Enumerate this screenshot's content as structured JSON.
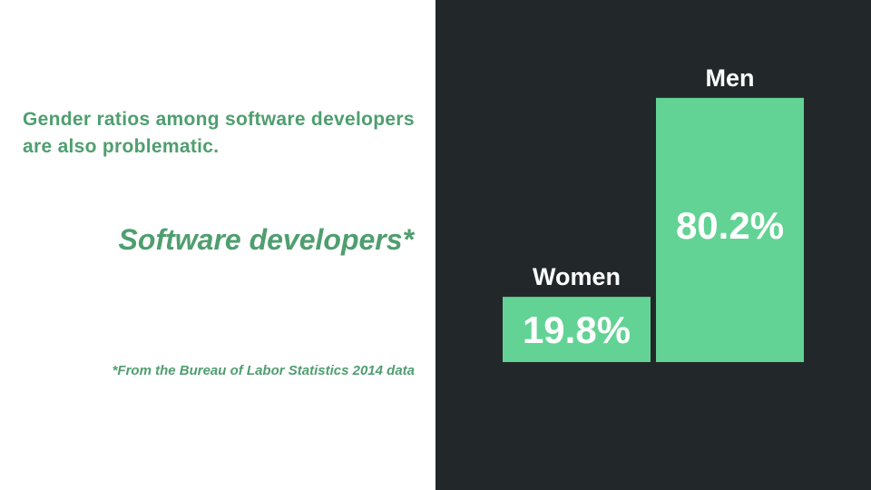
{
  "headline": "Gender ratios among software developers are also problematic.",
  "subtitle": "Software developers*",
  "footnote": "*From the Bureau of Labor Statistics 2014 data",
  "colors": {
    "accent_text": "#4f9e6f",
    "bar": "#62d394",
    "panel": "#222829"
  },
  "chart_data": {
    "type": "bar",
    "categories": [
      "Women",
      "Men"
    ],
    "values": [
      19.8,
      80.2
    ],
    "value_labels": [
      "19.8%",
      "80.2%"
    ],
    "title": "",
    "xlabel": "",
    "ylabel": "",
    "ylim": [
      0,
      100
    ],
    "grid": false
  }
}
